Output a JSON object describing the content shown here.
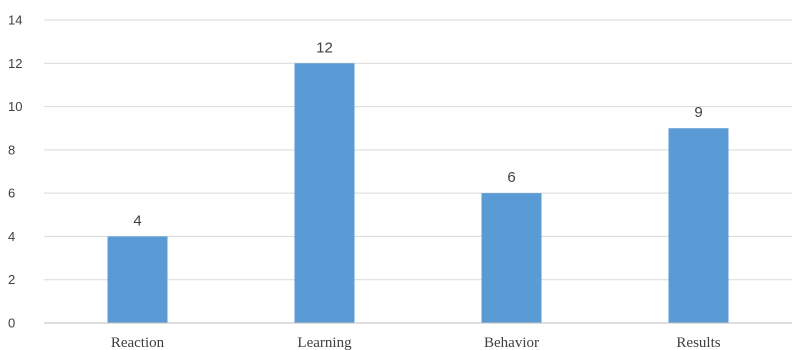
{
  "chart_data": {
    "type": "bar",
    "categories": [
      "Reaction",
      "Learning",
      "Behavior",
      "Results"
    ],
    "values": [
      4,
      12,
      6,
      9
    ],
    "data_labels": [
      "4",
      "12",
      "6",
      "9"
    ],
    "yticks": [
      "0",
      "2",
      "4",
      "6",
      "8",
      "10",
      "12",
      "14"
    ],
    "ylim": [
      0,
      14
    ],
    "grid": true,
    "legend": "none",
    "title": "",
    "xlabel": "",
    "ylabel": "",
    "colors": {
      "bar": "#5b9bd5",
      "grid": "#d9d9d9",
      "axis": "#bfbfbf",
      "text": "#404040"
    }
  }
}
